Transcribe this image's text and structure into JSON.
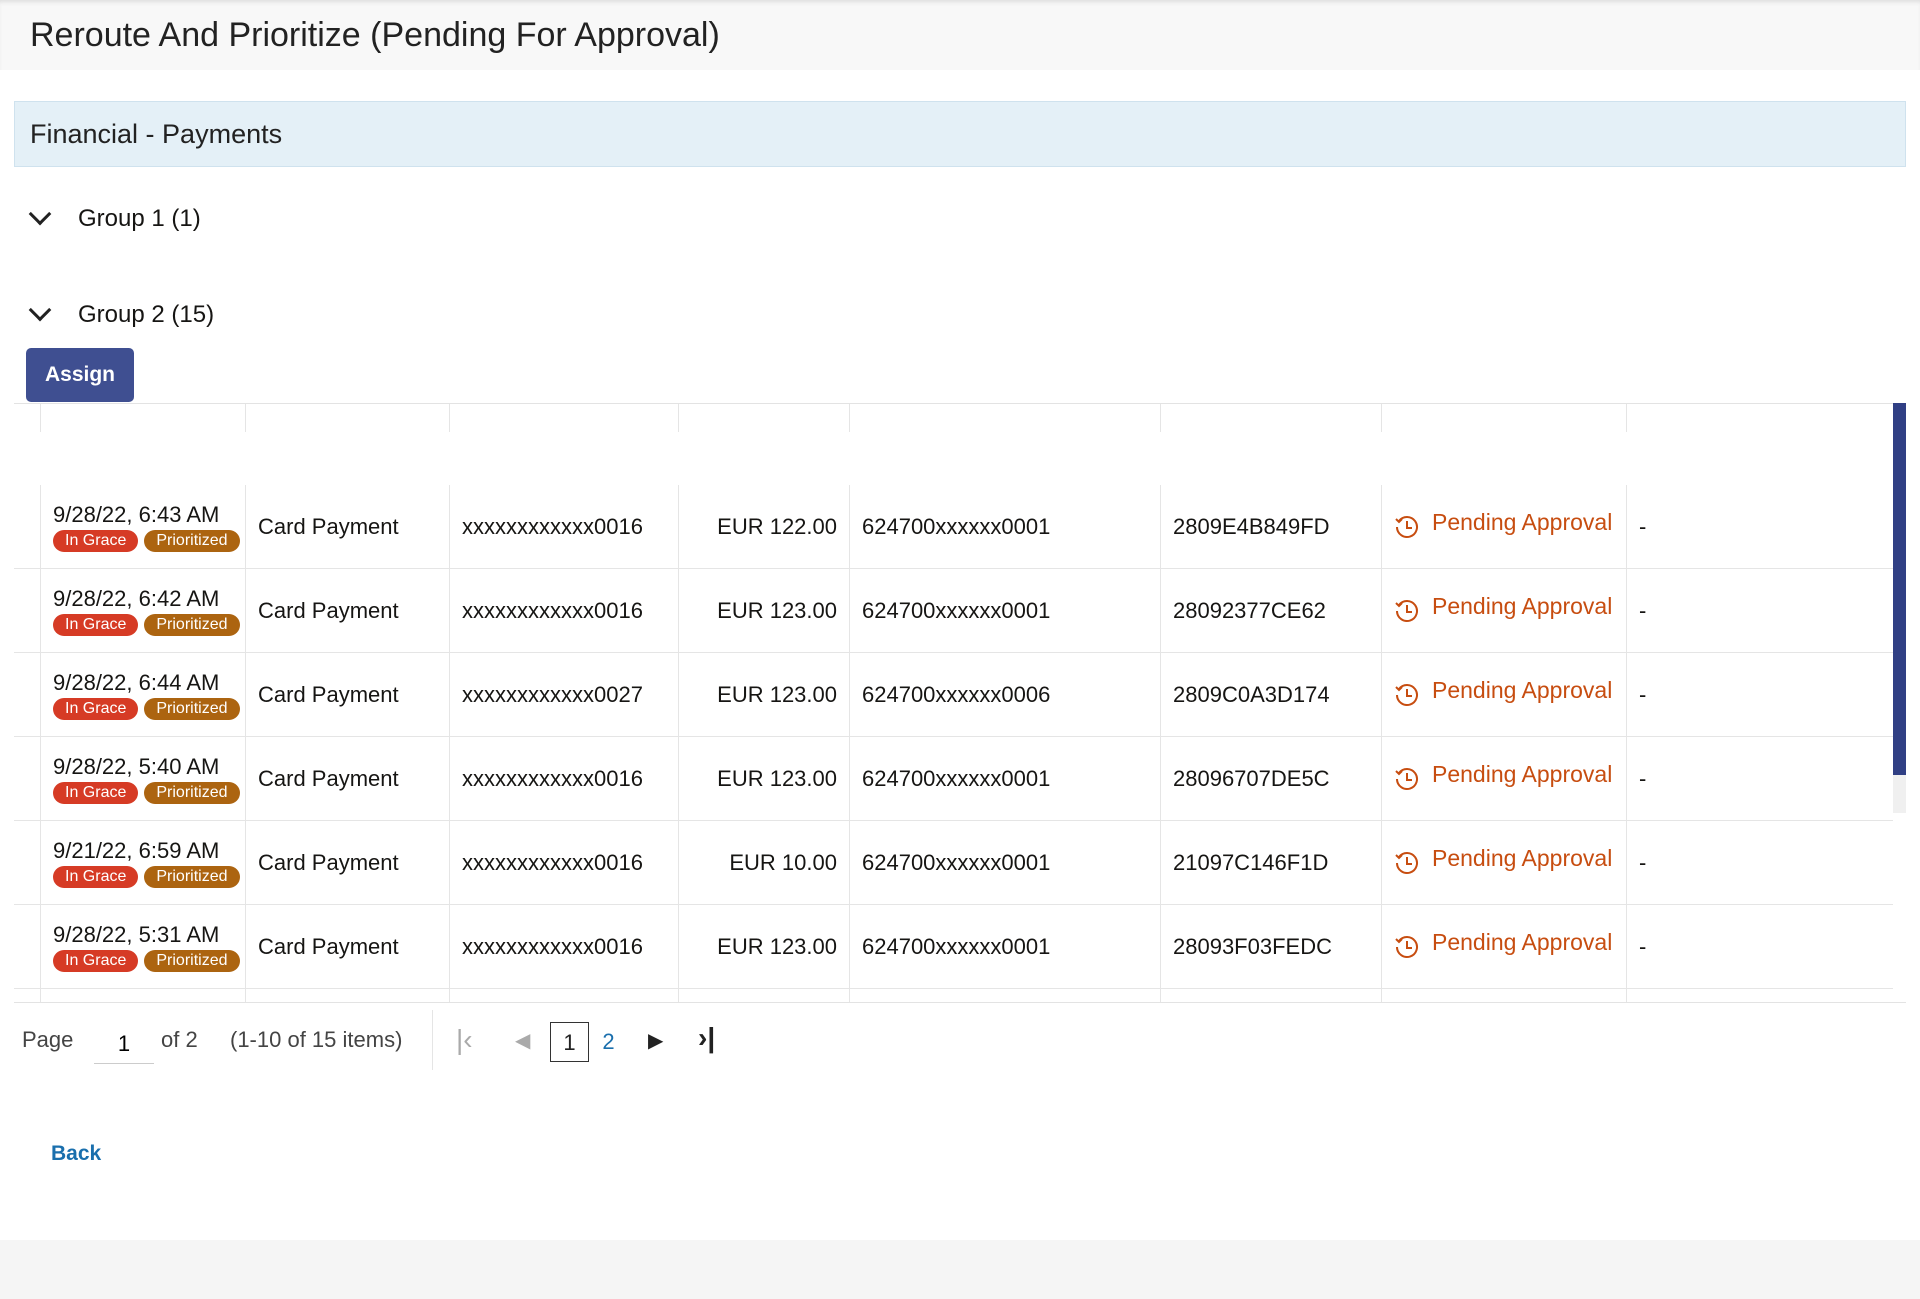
{
  "page": {
    "title": "Reroute And Prioritize (Pending For Approval)",
    "section": "Financial - Payments"
  },
  "groups": [
    {
      "label": "Group 1 (1)"
    },
    {
      "label": "Group 2 (15)"
    }
  ],
  "assign_label": "Assign",
  "colors": {
    "accent": "#3f4f91",
    "in_grace": "#d63b25",
    "prioritized": "#ac6410",
    "pending": "#c74d10",
    "link": "#1a6fad"
  },
  "rows": [
    {
      "date": "9/28/22, 6:43 AM",
      "badges": [
        "In Grace",
        "Prioritized"
      ],
      "type": "Card Payment",
      "account": "xxxxxxxxxxxx0016",
      "amount": "EUR 122.00",
      "card": "624700xxxxxx0001",
      "ref": "2809E4B849FD",
      "status": "Pending Approval",
      "extra": "-"
    },
    {
      "date": "9/28/22, 6:42 AM",
      "badges": [
        "In Grace",
        "Prioritized"
      ],
      "type": "Card Payment",
      "account": "xxxxxxxxxxxx0016",
      "amount": "EUR 123.00",
      "card": "624700xxxxxx0001",
      "ref": "28092377CE62",
      "status": "Pending Approval",
      "extra": "-"
    },
    {
      "date": "9/28/22, 6:44 AM",
      "badges": [
        "In Grace",
        "Prioritized"
      ],
      "type": "Card Payment",
      "account": "xxxxxxxxxxxx0027",
      "amount": "EUR 123.00",
      "card": "624700xxxxxx0006",
      "ref": "2809C0A3D174",
      "status": "Pending Approval",
      "extra": "-"
    },
    {
      "date": "9/28/22, 5:40 AM",
      "badges": [
        "In Grace",
        "Prioritized"
      ],
      "type": "Card Payment",
      "account": "xxxxxxxxxxxx0016",
      "amount": "EUR 123.00",
      "card": "624700xxxxxx0001",
      "ref": "28096707DE5C",
      "status": "Pending Approval",
      "extra": "-"
    },
    {
      "date": "9/21/22, 6:59 AM",
      "badges": [
        "In Grace",
        "Prioritized"
      ],
      "type": "Card Payment",
      "account": "xxxxxxxxxxxx0016",
      "amount": "EUR 10.00",
      "card": "624700xxxxxx0001",
      "ref": "21097C146F1D",
      "status": "Pending Approval",
      "extra": "-"
    },
    {
      "date": "9/28/22, 5:31 AM",
      "badges": [
        "In Grace",
        "Prioritized"
      ],
      "type": "Card Payment",
      "account": "xxxxxxxxxxxx0016",
      "amount": "EUR 123.00",
      "card": "624700xxxxxx0001",
      "ref": "28093F03FEDC",
      "status": "Pending Approval",
      "extra": "-"
    }
  ],
  "pagination": {
    "page_label": "Page",
    "current": "1",
    "of_label": "of 2",
    "summary": "(1-10 of 15 items)",
    "pages": [
      "1",
      "2"
    ]
  },
  "back_label": "Back"
}
